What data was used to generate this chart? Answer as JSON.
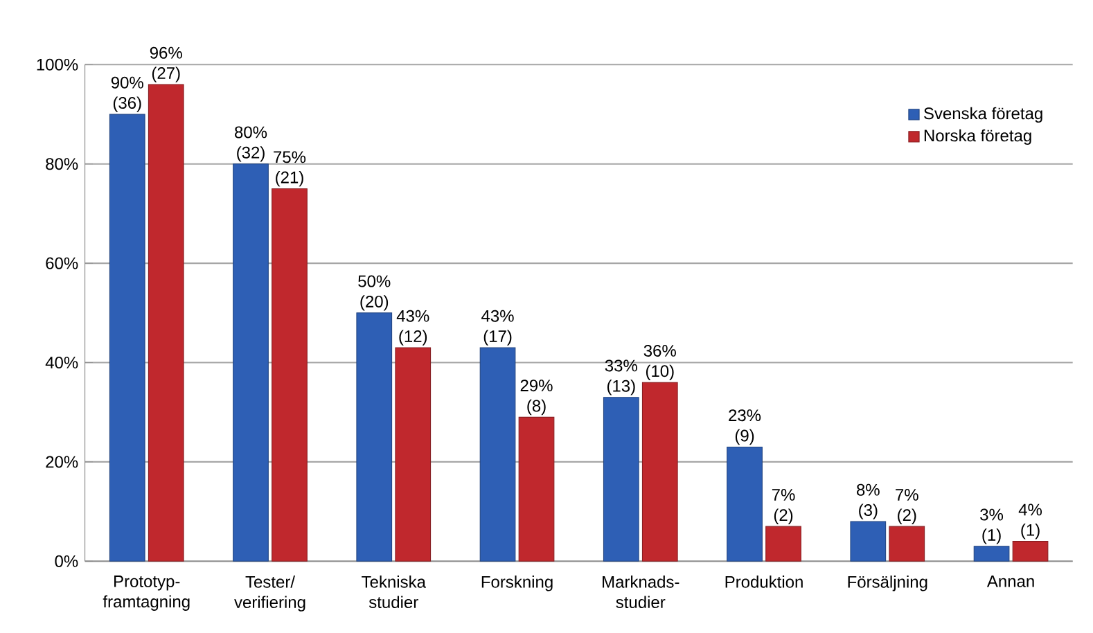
{
  "chart_data": {
    "type": "bar",
    "categories": [
      "Prototyp-framtagning",
      "Tester/ verifiering",
      "Tekniska studier",
      "Forskning",
      "Marknads-studier",
      "Produktion",
      "Försäljning",
      "Annan"
    ],
    "series": [
      {
        "name": "Svenska företag",
        "color": "#2e5fb5",
        "values": [
          90,
          80,
          50,
          43,
          33,
          23,
          8,
          3
        ],
        "value_labels": [
          "90% (36)",
          "80% (32)",
          "50% (20)",
          "43% (17)",
          "33% (13)",
          "23% (9)",
          "8% (3)",
          "3% (1)"
        ]
      },
      {
        "name": "Norska företag",
        "color": "#c0282d",
        "values": [
          96,
          75,
          43,
          29,
          36,
          7,
          7,
          4
        ],
        "value_labels": [
          "96% (27)",
          "75% (21)",
          "43% (12)",
          "29% (8)",
          "36% (10)",
          "7% (2)",
          "7% (2)",
          "4% (1)"
        ]
      }
    ],
    "ylim": [
      0,
      100
    ],
    "yticks": [
      {
        "value": 0,
        "label": "0%"
      },
      {
        "value": 20,
        "label": "20%"
      },
      {
        "value": 40,
        "label": "40%"
      },
      {
        "value": 60,
        "label": "60%"
      },
      {
        "value": 80,
        "label": "80%"
      },
      {
        "value": 100,
        "label": "100%"
      }
    ],
    "grid": "y",
    "legend": "top right"
  }
}
